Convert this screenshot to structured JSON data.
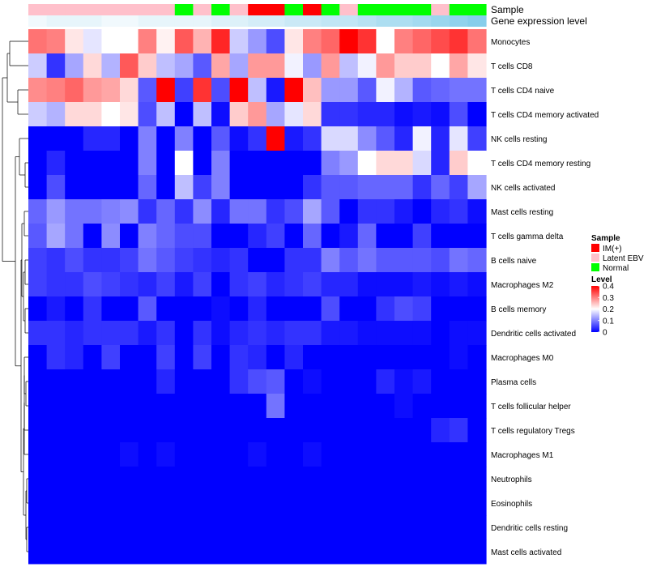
{
  "chart_data": {
    "type": "heatmap",
    "annotation_tracks": [
      {
        "name": "Sample",
        "values": [
          "Latent EBV",
          "Latent EBV",
          "Latent EBV",
          "Latent EBV",
          "Latent EBV",
          "Latent EBV",
          "Latent EBV",
          "Latent EBV",
          "Normal",
          "Latent EBV",
          "Normal",
          "Latent EBV",
          "IM(+)",
          "IM(+)",
          "Normal",
          "IM(+)",
          "Normal",
          "Latent EBV",
          "Normal",
          "Normal",
          "Normal",
          "Normal",
          "Latent EBV",
          "Normal",
          "Normal"
        ]
      },
      {
        "name": "Gene expression level",
        "values": [
          0.18,
          0.19,
          0.19,
          0.19,
          0.18,
          0.18,
          0.19,
          0.19,
          0.19,
          0.19,
          0.2,
          0.2,
          0.21,
          0.21,
          0.22,
          0.22,
          0.23,
          0.23,
          0.24,
          0.25,
          0.25,
          0.26,
          0.27,
          0.28,
          0.29
        ]
      }
    ],
    "sample_colors": {
      "IM(+)": "#ff0000",
      "Latent EBV": "#ffc0cb",
      "Normal": "#00ff00"
    },
    "rows": [
      "Monocytes",
      "T cells CD8",
      "T cells CD4 naive",
      "T cells CD4 memory activated",
      "NK cells resting",
      "T cells CD4 memory resting",
      "NK cells activated",
      "Mast cells resting",
      "T cells gamma delta",
      "B cells naive",
      "Macrophages M2",
      "B cells memory",
      "Dendritic cells activated",
      "Macrophages M0",
      "Plasma cells",
      "T cells follicular helper",
      "T cells regulatory  Tregs",
      "Macrophages M1",
      "Neutrophils",
      "Eosinophils",
      "Dendritic cells resting",
      "Mast cells activated"
    ],
    "matrix": [
      [
        0.31,
        0.3,
        0.22,
        0.18,
        0.2,
        0.2,
        0.3,
        0.21,
        0.33,
        0.26,
        0.37,
        0.16,
        0.12,
        0.06,
        0.22,
        0.3,
        0.32,
        0.4,
        0.36,
        0.2,
        0.3,
        0.32,
        0.34,
        0.36,
        0.31
      ],
      [
        0.16,
        0.04,
        0.13,
        0.23,
        0.14,
        0.33,
        0.24,
        0.15,
        0.13,
        0.07,
        0.27,
        0.13,
        0.28,
        0.28,
        0.19,
        0.12,
        0.28,
        0.15,
        0.19,
        0.28,
        0.24,
        0.24,
        0.2,
        0.27,
        0.22
      ],
      [
        0.29,
        0.3,
        0.32,
        0.28,
        0.27,
        0.23,
        0.07,
        0.4,
        0.05,
        0.36,
        0.06,
        0.4,
        0.15,
        0.02,
        0.4,
        0.25,
        0.12,
        0.12,
        0.07,
        0.19,
        0.14,
        0.07,
        0.08,
        0.09,
        0.09
      ],
      [
        0.16,
        0.14,
        0.23,
        0.23,
        0.2,
        0.22,
        0.06,
        0.15,
        0.0,
        0.15,
        0.01,
        0.24,
        0.28,
        0.13,
        0.18,
        0.23,
        0.04,
        0.04,
        0.03,
        0.03,
        0.01,
        0.02,
        0.01,
        0.06,
        0.0
      ],
      [
        0.0,
        0.0,
        0.0,
        0.03,
        0.03,
        0.0,
        0.1,
        0.0,
        0.1,
        0.0,
        0.07,
        0.01,
        0.04,
        0.4,
        0.02,
        0.04,
        0.17,
        0.17,
        0.11,
        0.07,
        0.03,
        0.19,
        0.03,
        0.18,
        0.05
      ],
      [
        0.0,
        0.03,
        0.0,
        0.0,
        0.0,
        0.0,
        0.1,
        0.0,
        0.2,
        0.0,
        0.1,
        0.0,
        0.0,
        0.0,
        0.0,
        0.0,
        0.1,
        0.12,
        0.2,
        0.23,
        0.23,
        0.17,
        0.03,
        0.24,
        0.2
      ],
      [
        0.0,
        0.06,
        0.0,
        0.0,
        0.0,
        0.0,
        0.08,
        0.0,
        0.15,
        0.05,
        0.1,
        0.0,
        0.0,
        0.0,
        0.0,
        0.04,
        0.07,
        0.07,
        0.08,
        0.08,
        0.08,
        0.04,
        0.08,
        0.05,
        0.13
      ],
      [
        0.08,
        0.12,
        0.09,
        0.09,
        0.1,
        0.11,
        0.04,
        0.08,
        0.04,
        0.11,
        0.03,
        0.09,
        0.09,
        0.04,
        0.06,
        0.13,
        0.07,
        0.0,
        0.04,
        0.04,
        0.02,
        0.0,
        0.03,
        0.04,
        0.01
      ],
      [
        0.07,
        0.13,
        0.09,
        0.0,
        0.11,
        0.0,
        0.1,
        0.08,
        0.06,
        0.06,
        0.0,
        0.0,
        0.03,
        0.05,
        0.0,
        0.08,
        0.0,
        0.02,
        0.08,
        0.0,
        0.0,
        0.05,
        0.0,
        0.0,
        0.0
      ],
      [
        0.05,
        0.04,
        0.06,
        0.04,
        0.04,
        0.05,
        0.09,
        0.07,
        0.05,
        0.04,
        0.03,
        0.04,
        0.0,
        0.0,
        0.04,
        0.04,
        0.1,
        0.07,
        0.09,
        0.07,
        0.07,
        0.07,
        0.06,
        0.09,
        0.08
      ],
      [
        0.05,
        0.04,
        0.04,
        0.06,
        0.05,
        0.04,
        0.03,
        0.05,
        0.02,
        0.05,
        0.0,
        0.04,
        0.05,
        0.03,
        0.04,
        0.05,
        0.03,
        0.03,
        0.01,
        0.01,
        0.01,
        0.02,
        0.01,
        0.02,
        0.01
      ],
      [
        0.0,
        0.02,
        0.0,
        0.04,
        0.0,
        0.0,
        0.07,
        0.0,
        0.0,
        0.0,
        0.01,
        0.0,
        0.03,
        0.0,
        0.0,
        0.0,
        0.06,
        0.0,
        0.0,
        0.04,
        0.06,
        0.05,
        0.0,
        0.0,
        0.0
      ],
      [
        0.04,
        0.04,
        0.03,
        0.04,
        0.04,
        0.04,
        0.02,
        0.04,
        0.0,
        0.04,
        0.01,
        0.03,
        0.04,
        0.03,
        0.04,
        0.04,
        0.02,
        0.02,
        0.01,
        0.01,
        0.01,
        0.01,
        0.0,
        0.01,
        0.01
      ],
      [
        0.0,
        0.04,
        0.03,
        0.0,
        0.05,
        0.0,
        0.0,
        0.05,
        0.0,
        0.05,
        0.0,
        0.04,
        0.03,
        0.0,
        0.03,
        0.0,
        0.0,
        0.0,
        0.0,
        0.0,
        0.0,
        0.0,
        0.0,
        0.01,
        0.0
      ],
      [
        0.0,
        0.0,
        0.0,
        0.0,
        0.0,
        0.0,
        0.0,
        0.03,
        0.0,
        0.0,
        0.0,
        0.04,
        0.06,
        0.07,
        0.0,
        0.01,
        0.0,
        0.0,
        0.0,
        0.03,
        0.01,
        0.02,
        0.0,
        0.0,
        0.0
      ],
      [
        0.0,
        0.0,
        0.0,
        0.0,
        0.0,
        0.0,
        0.0,
        0.0,
        0.0,
        0.0,
        0.0,
        0.0,
        0.0,
        0.09,
        0.0,
        0.0,
        0.0,
        0.0,
        0.0,
        0.0,
        0.01,
        0.0,
        0.0,
        0.0,
        0.0
      ],
      [
        0.0,
        0.0,
        0.0,
        0.0,
        0.0,
        0.0,
        0.0,
        0.0,
        0.0,
        0.0,
        0.0,
        0.0,
        0.0,
        0.0,
        0.0,
        0.0,
        0.0,
        0.0,
        0.0,
        0.0,
        0.0,
        0.0,
        0.03,
        0.04,
        0.0
      ],
      [
        0.0,
        0.0,
        0.0,
        0.0,
        0.0,
        0.01,
        0.0,
        0.01,
        0.0,
        0.0,
        0.0,
        0.0,
        0.01,
        0.0,
        0.0,
        0.01,
        0.0,
        0.0,
        0.0,
        0.0,
        0.0,
        0.0,
        0.0,
        0.0,
        0.0
      ],
      [
        0.0,
        0.0,
        0.0,
        0.0,
        0.0,
        0.0,
        0.0,
        0.0,
        0.0,
        0.0,
        0.0,
        0.0,
        0.0,
        0.0,
        0.0,
        0.0,
        0.0,
        0.0,
        0.0,
        0.0,
        0.0,
        0.0,
        0.0,
        0.0,
        0.0
      ],
      [
        0.0,
        0.0,
        0.0,
        0.0,
        0.0,
        0.0,
        0.0,
        0.0,
        0.0,
        0.0,
        0.0,
        0.0,
        0.0,
        0.0,
        0.0,
        0.0,
        0.0,
        0.0,
        0.0,
        0.0,
        0.0,
        0.0,
        0.0,
        0.0,
        0.0
      ],
      [
        0.0,
        0.0,
        0.0,
        0.0,
        0.0,
        0.0,
        0.0,
        0.0,
        0.0,
        0.0,
        0.0,
        0.0,
        0.0,
        0.0,
        0.0,
        0.0,
        0.0,
        0.0,
        0.0,
        0.0,
        0.0,
        0.0,
        0.0,
        0.0,
        0.0
      ],
      [
        0.0,
        0.0,
        0.0,
        0.0,
        0.0,
        0.0,
        0.0,
        0.0,
        0.0,
        0.0,
        0.0,
        0.0,
        0.0,
        0.0,
        0.0,
        0.0,
        0.0,
        0.0,
        0.0,
        0.0,
        0.0,
        0.0,
        0.0,
        0.0,
        0.0
      ]
    ],
    "color_scale": {
      "min": 0,
      "mid": 0.2,
      "max": 0.4,
      "colors": [
        "#0000ff",
        "#ffffff",
        "#ff0000"
      ]
    },
    "legend": {
      "sample_title": "Sample",
      "sample_entries": [
        "IM(+)",
        "Latent EBV",
        "Normal"
      ],
      "level_title": "Level",
      "level_ticks": [
        0.4,
        0.3,
        0.2,
        0.1,
        0
      ],
      "level_tick_labels": [
        "0.4",
        "0.3",
        "0.2",
        "0.1",
        "0"
      ]
    },
    "row_dendrogram": true
  }
}
